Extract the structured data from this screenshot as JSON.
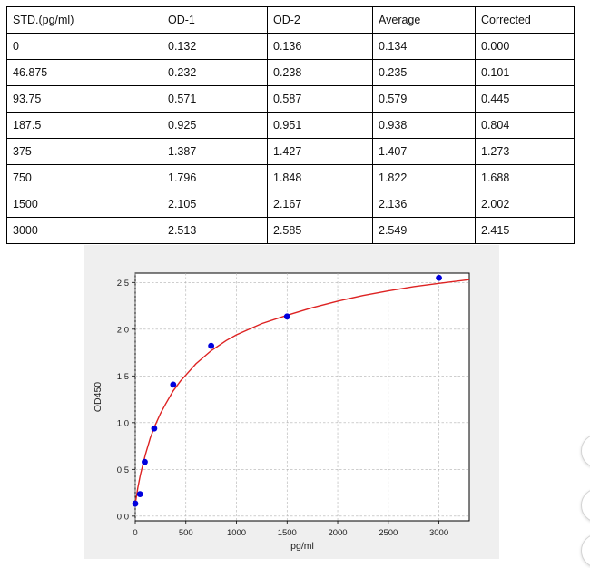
{
  "table": {
    "headers": [
      "STD.(pg/ml)",
      "OD-1",
      "OD-2",
      "Average",
      "Corrected"
    ],
    "rows": [
      [
        "0",
        "0.132",
        "0.136",
        "0.134",
        "0.000"
      ],
      [
        "46.875",
        "0.232",
        "0.238",
        "0.235",
        "0.101"
      ],
      [
        "93.75",
        "0.571",
        "0.587",
        "0.579",
        "0.445"
      ],
      [
        "187.5",
        "0.925",
        "0.951",
        "0.938",
        "0.804"
      ],
      [
        "375",
        "1.387",
        "1.427",
        "1.407",
        "1.273"
      ],
      [
        "750",
        "1.796",
        "1.848",
        "1.822",
        "1.688"
      ],
      [
        "1500",
        "2.105",
        "2.167",
        "2.136",
        "2.002"
      ],
      [
        "3000",
        "2.513",
        "2.585",
        "2.549",
        "2.415"
      ]
    ]
  },
  "chart_data": {
    "type": "scatter",
    "xlabel": "pg/ml",
    "ylabel": "OD450",
    "xlim": [
      0,
      3300
    ],
    "ylim": [
      -0.05,
      2.6
    ],
    "xticks": [
      0,
      500,
      1000,
      1500,
      2000,
      2500,
      3000
    ],
    "yticks": [
      0.0,
      0.5,
      1.0,
      1.5,
      2.0,
      2.5
    ],
    "xticklabels": [
      "0",
      "500",
      "1000",
      "1500",
      "2000",
      "2500",
      "3000"
    ],
    "yticklabels": [
      "0.0",
      "0.5",
      "1.0",
      "1.5",
      "2.0",
      "2.5"
    ],
    "grid": true,
    "series": [
      {
        "kind": "points",
        "x": [
          0,
          46.875,
          93.75,
          187.5,
          375,
          750,
          1500,
          3000
        ],
        "y": [
          0.134,
          0.235,
          0.579,
          0.938,
          1.407,
          1.822,
          2.136,
          2.549
        ],
        "color": "#0000dd"
      },
      {
        "kind": "fit-curve",
        "x": [
          0,
          25,
          50,
          100,
          150,
          200,
          250,
          300,
          375,
          450,
          500,
          600,
          750,
          900,
          1000,
          1250,
          1500,
          1750,
          2000,
          2250,
          2500,
          2750,
          3000,
          3300
        ],
        "y": [
          0.13,
          0.3,
          0.44,
          0.66,
          0.84,
          0.98,
          1.1,
          1.2,
          1.34,
          1.45,
          1.51,
          1.63,
          1.77,
          1.88,
          1.94,
          2.06,
          2.15,
          2.23,
          2.3,
          2.36,
          2.41,
          2.455,
          2.49,
          2.53
        ],
        "color": "#dd2222"
      }
    ]
  },
  "colors": {
    "panel_background": "#efefef",
    "grid": "#b0b0b0",
    "point": "#0000dd",
    "curve": "#dd2222"
  }
}
